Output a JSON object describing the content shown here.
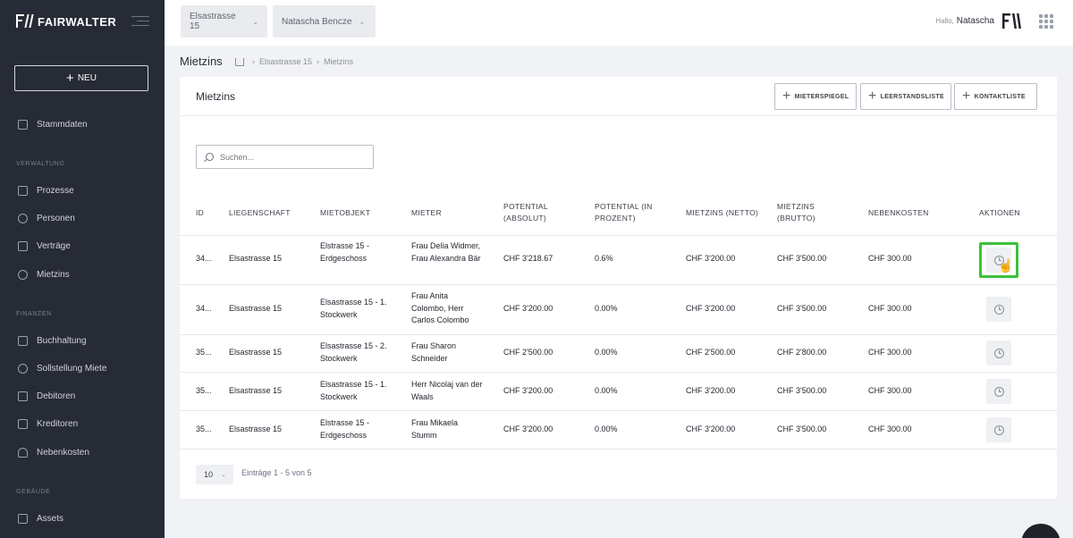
{
  "sidebar": {
    "logo": "FAIRWALTER",
    "new_label": "NEU",
    "items_top": [
      {
        "label": "Stammdaten",
        "icon": "database-icon"
      }
    ],
    "section_verwaltung": "VERWALTUNG",
    "items_verwaltung": [
      {
        "label": "Prozesse",
        "icon": "list-icon"
      },
      {
        "label": "Personen",
        "icon": "people-icon"
      },
      {
        "label": "Verträge",
        "icon": "contract-icon"
      },
      {
        "label": "Mietzins",
        "icon": "coins-icon"
      }
    ],
    "section_finanzen": "FINANZEN",
    "items_finanzen": [
      {
        "label": "Buchhaltung",
        "icon": "ledger-icon"
      },
      {
        "label": "Sollstellung Miete",
        "icon": "coins-icon"
      },
      {
        "label": "Debitoren",
        "icon": "debit-icon"
      },
      {
        "label": "Kreditoren",
        "icon": "credit-icon"
      },
      {
        "label": "Nebenkosten",
        "icon": "flame-icon"
      }
    ],
    "section_gebaeude": "GEBÄUDE",
    "items_gebaeude": [
      {
        "label": "Assets",
        "icon": "assets-icon"
      }
    ]
  },
  "topbar": {
    "property_select": "Elsastrasse 15",
    "person_select": "Natascha Bencze",
    "greeting": "Hallo,",
    "user_name": "Natascha"
  },
  "breadcrumb": {
    "title": "Mietzins",
    "path": [
      "Elsastrasse 15",
      "Mietzins"
    ]
  },
  "card": {
    "title": "Mietzins",
    "buttons": [
      "MIETERSPIEGEL",
      "LEERSTANDSLISTE",
      "KONTAKTLISTE"
    ],
    "search_placeholder": "Suchen..."
  },
  "table": {
    "headers": [
      "ID",
      "LIEGENSCHAFT",
      "MIETOBJEKT",
      "MIETER",
      "POTENTIAL (ABSOLUT)",
      "POTENTIAL (IN PROZENT)",
      "MIETZINS (NETTO)",
      "MIETZINS (BRUTTO)",
      "NEBENKOSTEN",
      "AKTIONEN"
    ],
    "rows": [
      {
        "id": "34...",
        "liegenschaft": "Elsastrasse 15",
        "mietobjekt": "Elstrasse 15 - Erdgeschoss",
        "mieter": "Frau Delia Widmer, Frau Alexandra Bär",
        "pot_abs": "CHF 3'218.67",
        "pot_pct": "0.6%",
        "netto": "CHF 3'200.00",
        "brutto": "CHF 3'500.00",
        "nk": "CHF 300.00"
      },
      {
        "id": "34...",
        "liegenschaft": "Elsastrasse 15",
        "mietobjekt": "Elsastrasse 15 - 1. Stockwerk",
        "mieter": "Frau Anita Colombo, Herr Carlos Colombo",
        "pot_abs": "CHF 3'200.00",
        "pot_pct": "0.00%",
        "netto": "CHF 3'200.00",
        "brutto": "CHF 3'500.00",
        "nk": "CHF 300.00"
      },
      {
        "id": "35...",
        "liegenschaft": "Elsastrasse 15",
        "mietobjekt": "Elsastrasse 15 - 2. Stockwerk",
        "mieter": "Frau Sharon Schneider",
        "pot_abs": "CHF 2'500.00",
        "pot_pct": "0.00%",
        "netto": "CHF 2'500.00",
        "brutto": "CHF 2'800.00",
        "nk": "CHF 300.00"
      },
      {
        "id": "35...",
        "liegenschaft": "Elsastrasse 15",
        "mietobjekt": "Elsastrasse 15 - 1. Stockwerk",
        "mieter": "Herr Nicolaj van der Waals",
        "pot_abs": "CHF 3'200.00",
        "pot_pct": "0.00%",
        "netto": "CHF 3'200.00",
        "brutto": "CHF 3'500.00",
        "nk": "CHF 300.00"
      },
      {
        "id": "35...",
        "liegenschaft": "Elsastrasse 15",
        "mietobjekt": "Elstrasse 15 - Erdgeschoss",
        "mieter": "Frau Mikaela Stumm",
        "pot_abs": "CHF 3'200.00",
        "pot_pct": "0.00%",
        "netto": "CHF 3'200.00",
        "brutto": "CHF 3'500.00",
        "nk": "CHF 300.00"
      }
    ]
  },
  "pagination": {
    "page_size": "10",
    "entries": "Einträge 1 - 5 von 5"
  },
  "colors": {
    "sidebar_bg": "#262b35",
    "highlight": "#3cc13b"
  }
}
